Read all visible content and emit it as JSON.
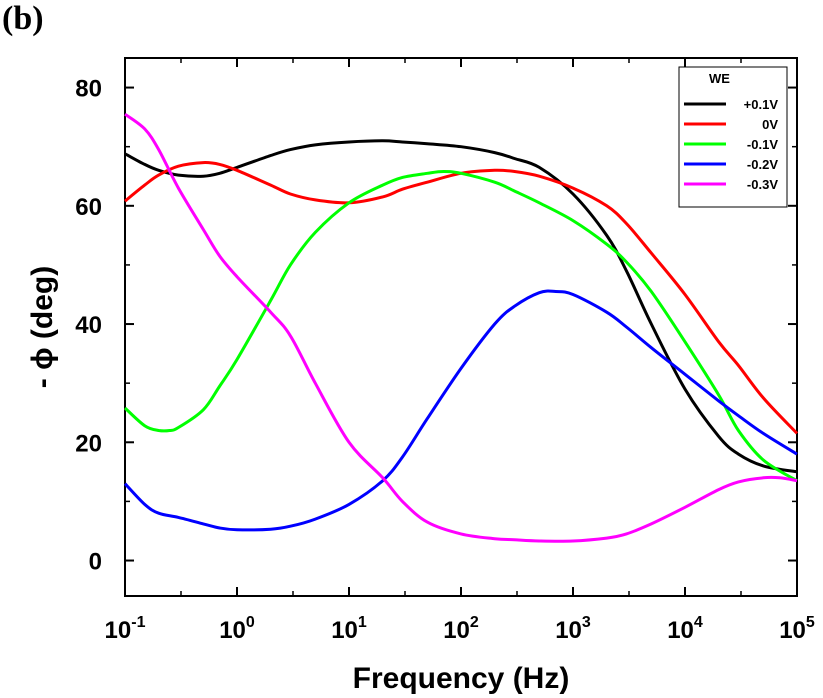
{
  "panel_label": "(b)",
  "chart_data": {
    "type": "line",
    "xscale": "log",
    "xlim": [
      0.1,
      100000
    ],
    "ylim": [
      -6,
      85
    ],
    "xlabel": "Frequency (Hz)",
    "ylabel": "- ϕ (deg)",
    "x_ticks": [
      {
        "base": "10",
        "exp": "-1",
        "value": 0.1
      },
      {
        "base": "10",
        "exp": "0",
        "value": 1
      },
      {
        "base": "10",
        "exp": "1",
        "value": 10
      },
      {
        "base": "10",
        "exp": "2",
        "value": 100
      },
      {
        "base": "10",
        "exp": "3",
        "value": 1000
      },
      {
        "base": "10",
        "exp": "4",
        "value": 10000
      },
      {
        "base": "10",
        "exp": "5",
        "value": 100000
      }
    ],
    "y_ticks": [
      0,
      20,
      40,
      60,
      80
    ],
    "legend": {
      "title": "WE",
      "position": "top-right"
    },
    "series": [
      {
        "name": "+0.1V",
        "color": "#000000",
        "x": [
          0.1,
          0.15,
          0.2,
          0.3,
          0.5,
          0.7,
          1,
          2,
          3,
          5,
          10,
          20,
          30,
          50,
          100,
          200,
          300,
          500,
          1000,
          2000,
          3000,
          5000,
          10000,
          20000,
          30000,
          50000,
          100000
        ],
        "y": [
          68.8,
          67,
          66,
          65.2,
          65,
          65.5,
          66.5,
          68.5,
          69.5,
          70.3,
          70.8,
          71,
          70.8,
          70.5,
          70,
          69,
          68,
          66.5,
          62,
          55,
          49,
          40,
          29,
          21,
          18,
          16,
          15
        ]
      },
      {
        "name": "0V",
        "color": "#ff0000",
        "x": [
          0.1,
          0.15,
          0.2,
          0.3,
          0.5,
          0.7,
          1,
          2,
          3,
          5,
          10,
          20,
          30,
          50,
          100,
          200,
          300,
          500,
          1000,
          2000,
          3000,
          5000,
          10000,
          20000,
          30000,
          50000,
          100000
        ],
        "y": [
          60.8,
          63.5,
          65.2,
          66.7,
          67.3,
          67,
          66,
          63.5,
          62,
          61,
          60.5,
          61.5,
          62.8,
          64,
          65.5,
          66,
          65.8,
          65,
          63,
          60,
          57,
          52,
          45,
          37,
          33,
          27.5,
          21.5
        ]
      },
      {
        "name": "-0.1V",
        "color": "#00ff00",
        "x": [
          0.1,
          0.15,
          0.2,
          0.25,
          0.3,
          0.5,
          0.7,
          1,
          2,
          3,
          5,
          10,
          20,
          30,
          50,
          70,
          100,
          200,
          300,
          500,
          1000,
          2000,
          3000,
          5000,
          10000,
          20000,
          30000,
          50000,
          100000
        ],
        "y": [
          25.8,
          22.8,
          22,
          22,
          22.5,
          25.5,
          29.5,
          34,
          44,
          50,
          55.5,
          60.5,
          63.5,
          64.8,
          65.5,
          65.8,
          65.5,
          64,
          62.5,
          60.5,
          57.5,
          53.5,
          50.5,
          45.5,
          37,
          28,
          22,
          17,
          13.5
        ]
      },
      {
        "name": "-0.2V",
        "color": "#0000ff",
        "x": [
          0.1,
          0.15,
          0.2,
          0.3,
          0.5,
          0.7,
          1,
          2,
          3,
          5,
          10,
          20,
          30,
          50,
          100,
          200,
          300,
          500,
          700,
          1000,
          2000,
          3000,
          5000,
          10000,
          20000,
          30000,
          50000,
          100000
        ],
        "y": [
          13,
          9.5,
          8,
          7.3,
          6.2,
          5.5,
          5.2,
          5.3,
          5.8,
          7,
          9.5,
          13.5,
          17.5,
          24,
          32.5,
          40,
          43,
          45.3,
          45.5,
          45,
          42,
          39.5,
          36,
          31.5,
          27,
          24.5,
          21.5,
          18
        ]
      },
      {
        "name": "-0.3V",
        "color": "#ff00ff",
        "x": [
          0.1,
          0.15,
          0.2,
          0.3,
          0.5,
          0.7,
          1,
          2,
          3,
          5,
          10,
          20,
          30,
          50,
          100,
          200,
          300,
          500,
          1000,
          2000,
          3000,
          5000,
          10000,
          20000,
          30000,
          50000,
          70000,
          100000
        ],
        "y": [
          75.5,
          73,
          69.5,
          63,
          56,
          51.5,
          48,
          42,
          38,
          30,
          20,
          14,
          10,
          6.5,
          4.5,
          3.7,
          3.5,
          3.3,
          3.3,
          3.8,
          4.5,
          6.2,
          9,
          12,
          13.3,
          14,
          14,
          13.5
        ]
      }
    ]
  }
}
